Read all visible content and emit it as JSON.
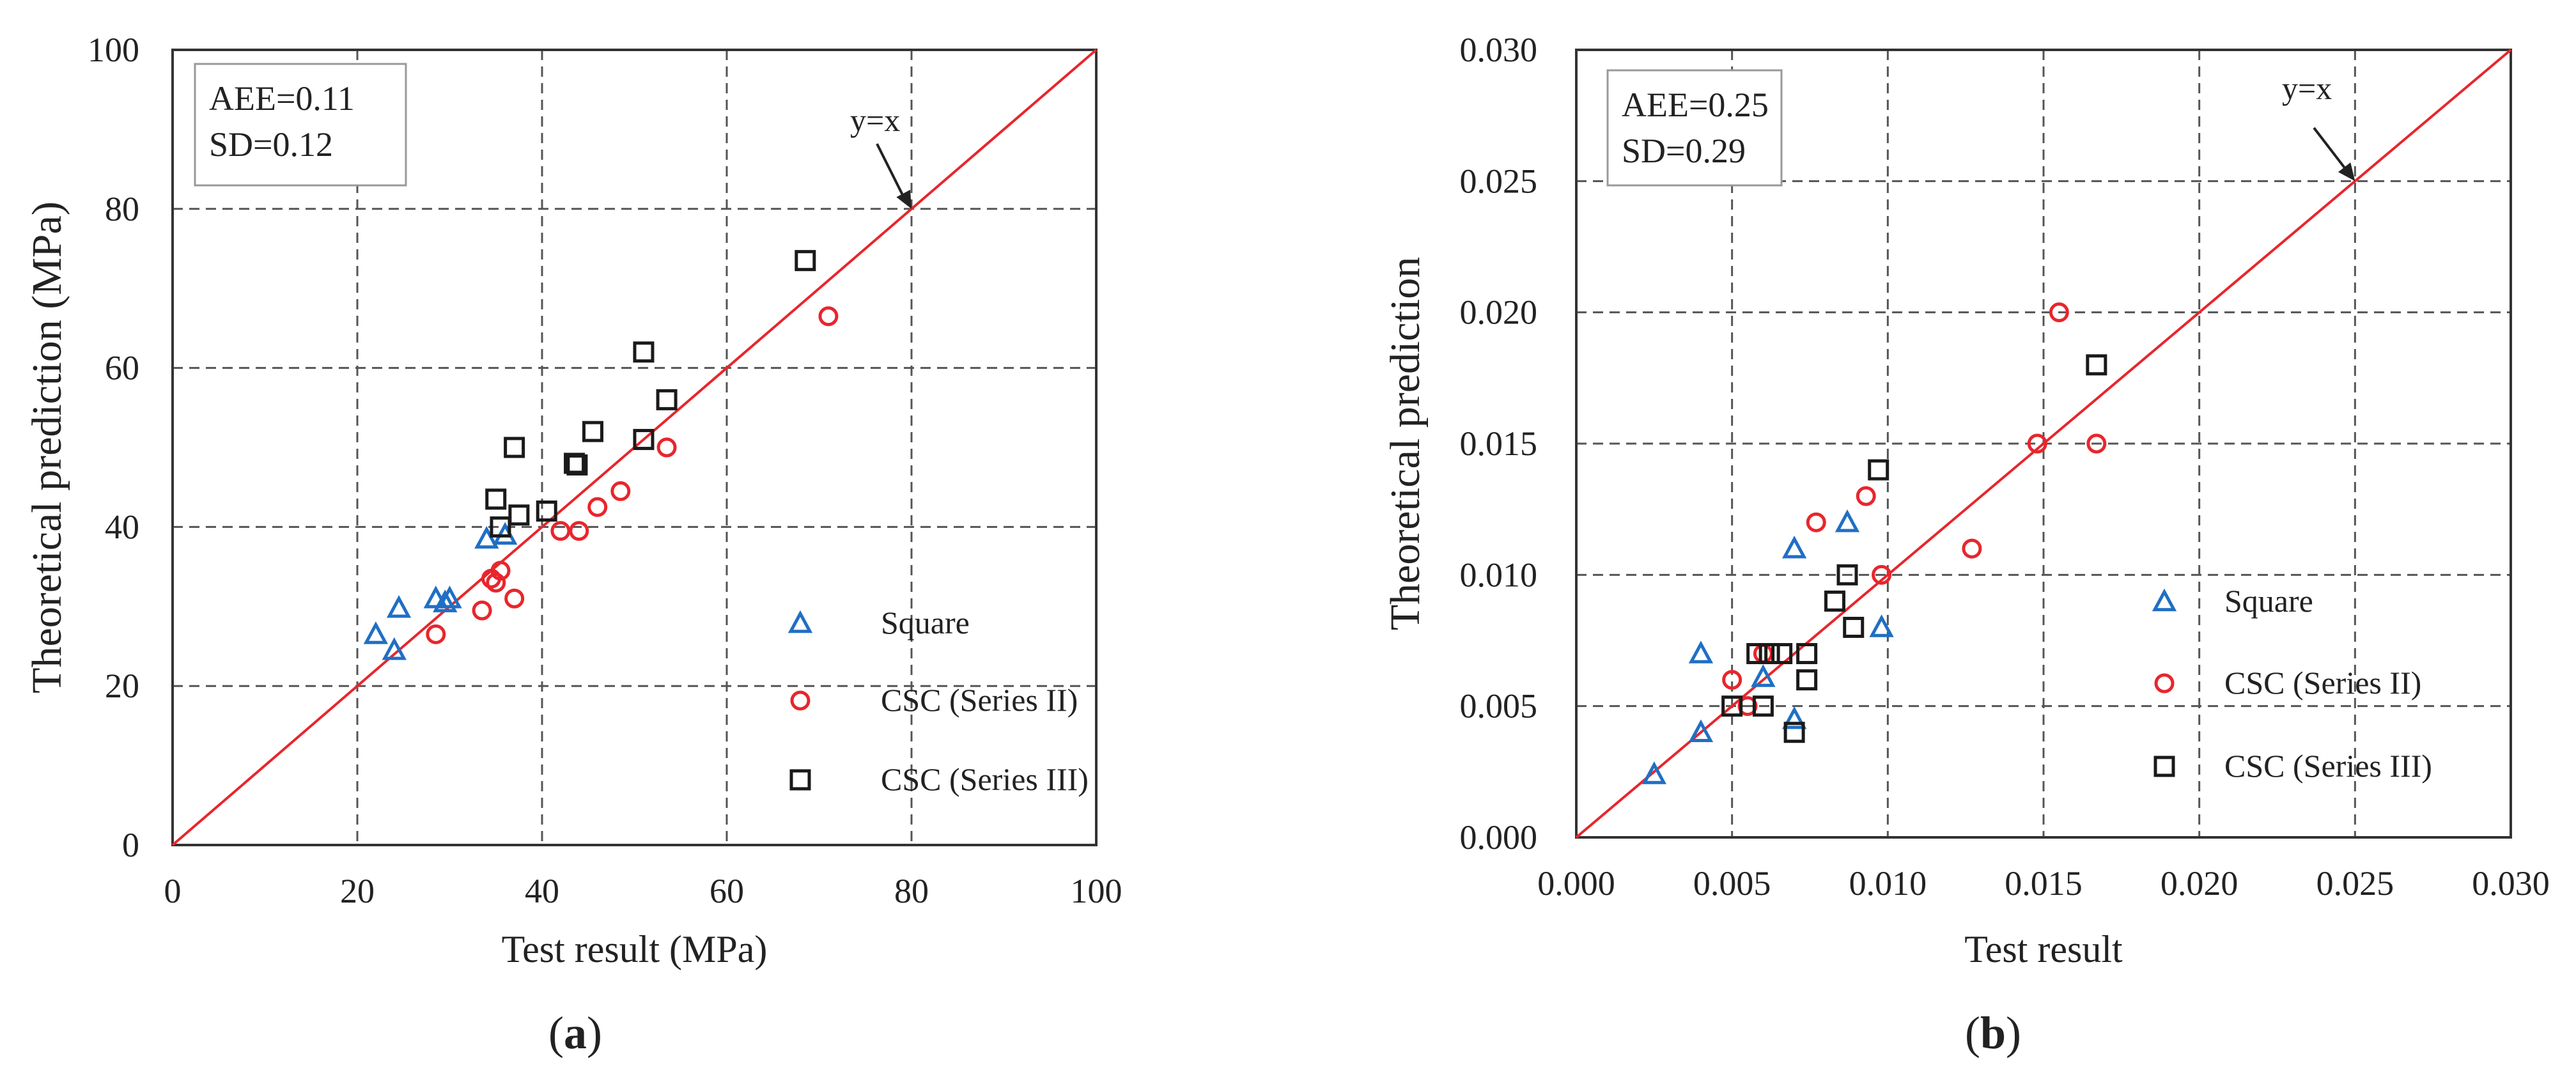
{
  "chart_data": [
    {
      "type": "scatter",
      "panel_label": "a",
      "xlabel": "Test result (MPa)",
      "ylabel": "Theoretical prediction (MPa)",
      "xlim": [
        0,
        100
      ],
      "ylim": [
        0,
        100
      ],
      "xticks": [
        0,
        20,
        40,
        60,
        80,
        100
      ],
      "yticks": [
        0,
        20,
        40,
        60,
        80,
        100
      ],
      "xtick_labels": [
        "0",
        "20",
        "40",
        "60",
        "80",
        "100"
      ],
      "ytick_labels": [
        "0",
        "20",
        "40",
        "60",
        "80",
        "100"
      ],
      "grid": true,
      "stats": [
        "AEE=0.11",
        "SD=0.12"
      ],
      "reference_line": {
        "label": "y=x",
        "points": [
          [
            0,
            0
          ],
          [
            100,
            100
          ]
        ],
        "annotate_at": [
          80,
          80
        ]
      },
      "legend": {
        "placement": "right",
        "entries": [
          "Square",
          "CSC (Series II)",
          "CSC (Series III)"
        ]
      },
      "series": [
        {
          "name": "Square",
          "marker": "triangle",
          "color": "#1f6fc4",
          "points": [
            [
              22,
              26.5
            ],
            [
              24,
              24.5
            ],
            [
              24.5,
              29.8
            ],
            [
              28.5,
              31
            ],
            [
              29.5,
              30.5
            ],
            [
              30,
              31
            ],
            [
              34,
              38.5
            ],
            [
              36,
              39
            ]
          ]
        },
        {
          "name": "CSC (Series II)",
          "marker": "circle",
          "color": "#e8262c",
          "points": [
            [
              28.5,
              26.5
            ],
            [
              33.5,
              29.5
            ],
            [
              34.5,
              33.5
            ],
            [
              35,
              33
            ],
            [
              35.5,
              34.5
            ],
            [
              37,
              31
            ],
            [
              42,
              39.5
            ],
            [
              44,
              39.5
            ],
            [
              46,
              42.5
            ],
            [
              48.5,
              44.5
            ],
            [
              53.5,
              50
            ],
            [
              71,
              66.5
            ]
          ]
        },
        {
          "name": "CSC (Series III)",
          "marker": "square",
          "color": "#1a1a1a",
          "points": [
            [
              35,
              43.5
            ],
            [
              35.5,
              40
            ],
            [
              37,
              50
            ],
            [
              37.5,
              41.5
            ],
            [
              40.5,
              42
            ],
            [
              43.5,
              48
            ],
            [
              43.8,
              47.8
            ],
            [
              45.5,
              52
            ],
            [
              51,
              51
            ],
            [
              51,
              62
            ],
            [
              53.5,
              56
            ],
            [
              68.5,
              73.5
            ]
          ]
        }
      ]
    },
    {
      "type": "scatter",
      "panel_label": "b",
      "xlabel": "Test result",
      "ylabel": "Theoretical prediction",
      "xlim": [
        0,
        0.03
      ],
      "ylim": [
        0,
        0.03
      ],
      "xticks": [
        0,
        0.005,
        0.01,
        0.015,
        0.02,
        0.025,
        0.03
      ],
      "yticks": [
        0,
        0.005,
        0.01,
        0.015,
        0.02,
        0.025,
        0.03
      ],
      "xtick_labels": [
        "0.000",
        "0.005",
        "0.010",
        "0.015",
        "0.020",
        "0.025",
        "0.030"
      ],
      "ytick_labels": [
        "0.000",
        "0.005",
        "0.010",
        "0.015",
        "0.020",
        "0.025",
        "0.030"
      ],
      "grid": true,
      "stats": [
        "AEE=0.25",
        "SD=0.29"
      ],
      "reference_line": {
        "label": "y=x",
        "points": [
          [
            0,
            0
          ],
          [
            0.03,
            0.03
          ]
        ],
        "annotate_at": [
          0.025,
          0.025
        ]
      },
      "legend": {
        "placement": "right",
        "entries": [
          "Square",
          "CSC (Series II)",
          "CSC (Series III)"
        ]
      },
      "series": [
        {
          "name": "Square",
          "marker": "triangle",
          "color": "#1f6fc4",
          "points": [
            [
              0.0025,
              0.0024
            ],
            [
              0.004,
              0.004
            ],
            [
              0.004,
              0.007
            ],
            [
              0.006,
              0.0061
            ],
            [
              0.007,
              0.0045
            ],
            [
              0.007,
              0.011
            ],
            [
              0.0087,
              0.012
            ],
            [
              0.0098,
              0.008
            ]
          ]
        },
        {
          "name": "CSC (Series II)",
          "marker": "circle",
          "color": "#e8262c",
          "points": [
            [
              0.005,
              0.006
            ],
            [
              0.0055,
              0.005
            ],
            [
              0.006,
              0.007
            ],
            [
              0.0077,
              0.012
            ],
            [
              0.0093,
              0.013
            ],
            [
              0.0098,
              0.01
            ],
            [
              0.0127,
              0.011
            ],
            [
              0.0148,
              0.015
            ],
            [
              0.0155,
              0.02
            ],
            [
              0.0167,
              0.015
            ]
          ]
        },
        {
          "name": "CSC (Series III)",
          "marker": "square",
          "color": "#1a1a1a",
          "points": [
            [
              0.005,
              0.005
            ],
            [
              0.0058,
              0.007
            ],
            [
              0.006,
              0.005
            ],
            [
              0.0062,
              0.007
            ],
            [
              0.0066,
              0.007
            ],
            [
              0.007,
              0.004
            ],
            [
              0.0074,
              0.006
            ],
            [
              0.0074,
              0.007
            ],
            [
              0.0083,
              0.009
            ],
            [
              0.0087,
              0.01
            ],
            [
              0.0089,
              0.008
            ],
            [
              0.0097,
              0.014
            ],
            [
              0.0167,
              0.018
            ]
          ]
        }
      ]
    }
  ]
}
